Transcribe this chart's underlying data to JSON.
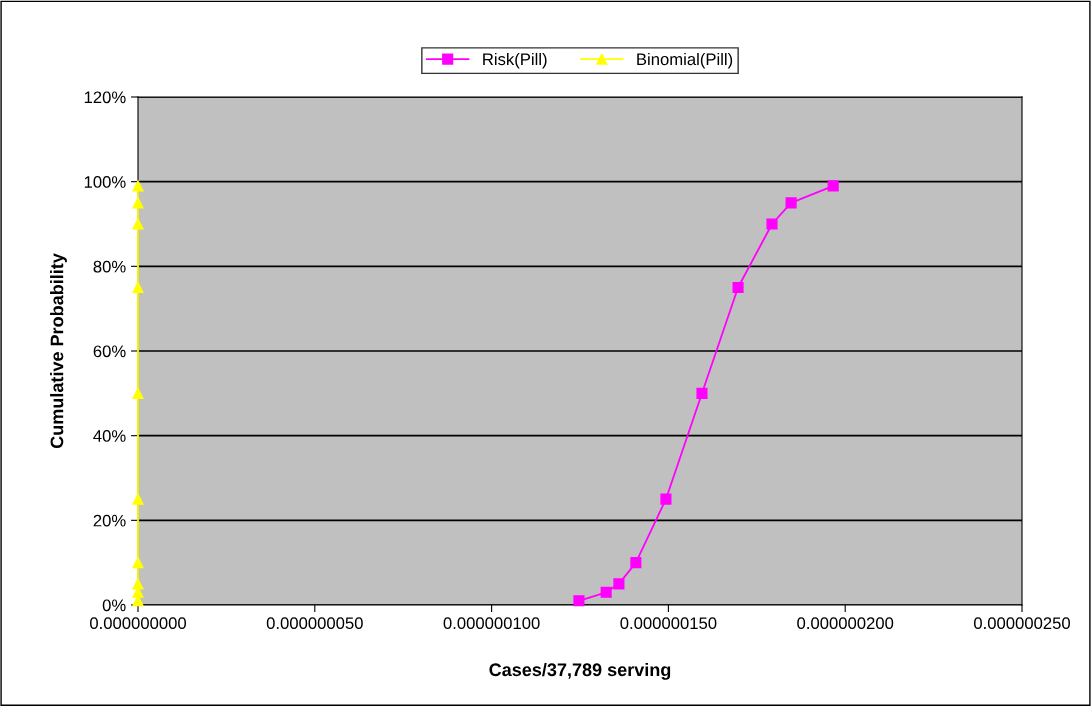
{
  "chart_data": {
    "type": "line",
    "xlabel": "Cases/37,789 serving",
    "ylabel": "Cumulative Probability",
    "series": [
      {
        "name": "Risk(Pill)",
        "color": "#ff00ff",
        "marker": "square",
        "x": [
          1.247e-07,
          1.324e-07,
          1.36e-07,
          1.408e-07,
          1.493e-07,
          1.595e-07,
          1.697e-07,
          1.793e-07,
          1.847e-07,
          1.966e-07
        ],
        "values": [
          1,
          3,
          5,
          10,
          25,
          50,
          75,
          90,
          95,
          99
        ]
      },
      {
        "name": "Binomial(Pill)",
        "color": "#ffff00",
        "marker": "triangle",
        "x": [
          0,
          0,
          0,
          0,
          0,
          0,
          0,
          0,
          0,
          0
        ],
        "values": [
          1,
          3,
          5,
          10,
          25,
          50,
          75,
          90,
          95,
          99
        ]
      }
    ],
    "xlim": [
      0,
      2.5e-07
    ],
    "xticks": [
      {
        "value": 0,
        "label": "0.000000000"
      },
      {
        "value": 5e-08,
        "label": "0.000000050"
      },
      {
        "value": 1e-07,
        "label": "0.000000100"
      },
      {
        "value": 1.5e-07,
        "label": "0.000000150"
      },
      {
        "value": 2e-07,
        "label": "0.000000200"
      },
      {
        "value": 2.5e-07,
        "label": "0.000000250"
      }
    ],
    "ylim": [
      0,
      120
    ],
    "yticks": [
      {
        "value": 0,
        "label": "0%"
      },
      {
        "value": 20,
        "label": "20%"
      },
      {
        "value": 40,
        "label": "40%"
      },
      {
        "value": 60,
        "label": "60%"
      },
      {
        "value": 80,
        "label": "80%"
      },
      {
        "value": 100,
        "label": "100%"
      },
      {
        "value": 120,
        "label": "120%"
      }
    ],
    "grid": "y",
    "legend": "top",
    "line_style": "solid"
  }
}
